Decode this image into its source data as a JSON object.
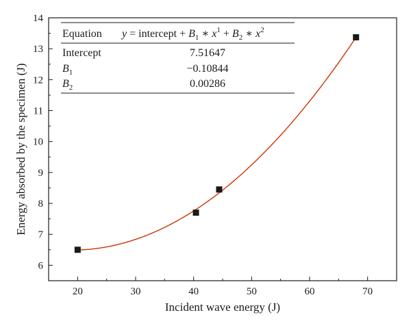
{
  "chart_data": {
    "type": "scatter",
    "xlabel": "Incident wave energy (J)",
    "ylabel": "Energy absorbed by the specimen (J)",
    "xlim": [
      15,
      75
    ],
    "ylim": [
      5.5,
      14
    ],
    "xticks": [
      20,
      30,
      40,
      50,
      60,
      70
    ],
    "yticks": [
      6,
      7,
      8,
      9,
      10,
      11,
      12,
      13,
      14
    ],
    "tick_labels_x": [
      "20",
      "30",
      "40",
      "50",
      "60",
      "70"
    ],
    "tick_labels_y": [
      "6",
      "7",
      "8",
      "9",
      "10",
      "11",
      "12",
      "13",
      "14"
    ],
    "grid": false,
    "series": [
      {
        "kind": "points",
        "marker": "square",
        "color": "#1a1a1a",
        "x": [
          20,
          40.4,
          44.4,
          68
        ],
        "y": [
          6.5,
          7.7,
          8.45,
          13.37
        ]
      },
      {
        "kind": "fit",
        "color": "#cc3300",
        "x_range": [
          20,
          68
        ],
        "coefficients": {
          "intercept": 7.51647,
          "B1": -0.10844,
          "B2": 0.00286
        }
      }
    ],
    "fit_table": {
      "equation_label": "Equation",
      "equation_parts": {
        "lhs": "y",
        "mid": " = intercept + ",
        "b1": "B",
        "b1_sub": "1",
        "op1": " ∗ ",
        "x1": "x",
        "x1_sup": "1",
        "plus": " + ",
        "b2": "B",
        "b2_sub": "2",
        "op2": " ∗ ",
        "x2": "x",
        "x2_sup": "2"
      },
      "rows": [
        {
          "name": "Intercept",
          "name_sub": "",
          "value": "7.51647"
        },
        {
          "name": "B",
          "name_sub": "1",
          "value": "−0.10844"
        },
        {
          "name": "B",
          "name_sub": "2",
          "value": "0.00286"
        }
      ]
    }
  }
}
